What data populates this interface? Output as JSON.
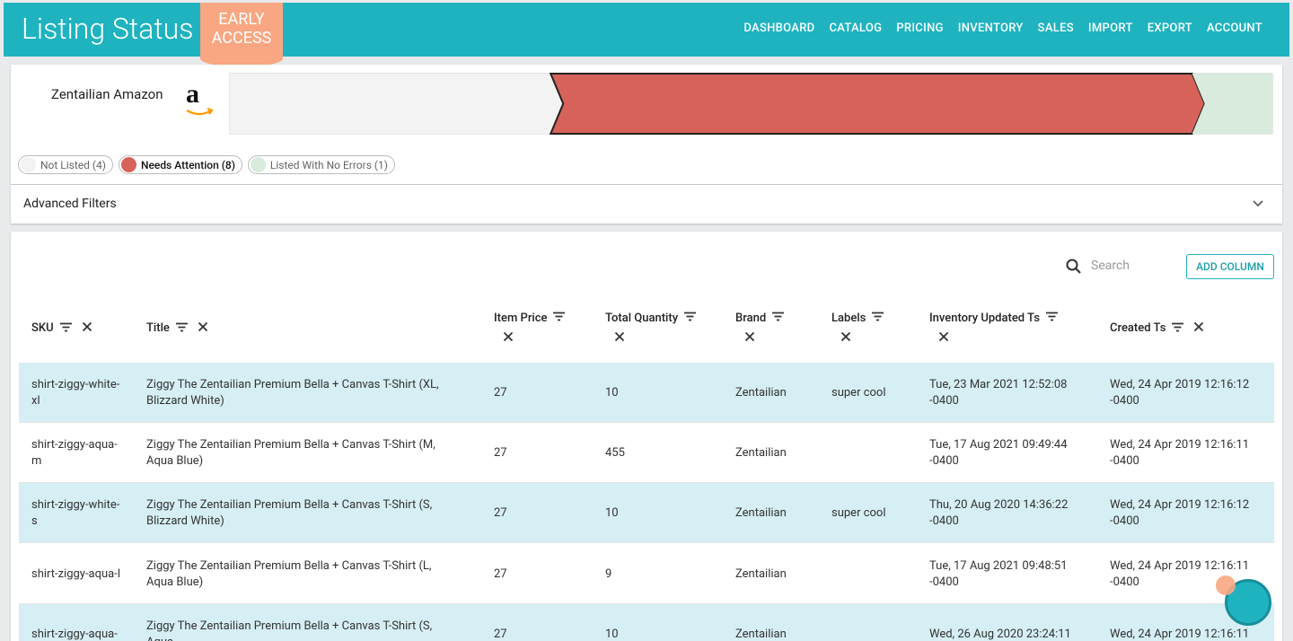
{
  "header": {
    "title": "Listing Status",
    "badge": "EARLY ACCESS",
    "nav": [
      "DASHBOARD",
      "CATALOG",
      "PRICING",
      "INVENTORY",
      "SALES",
      "IMPORT",
      "EXPORT",
      "ACCOUNT"
    ]
  },
  "status": {
    "channel": "Zentailian Amazon",
    "logo": "a",
    "segments": [
      {
        "label": "Not Listed (4)",
        "count": 4,
        "color": "#f3f3f3"
      },
      {
        "label": "Needs Attention (8)",
        "count": 8,
        "color": "#d6625a"
      },
      {
        "label": "Listed With No Errors (1)",
        "count": 1,
        "color": "#d8ebdd"
      }
    ]
  },
  "filters": {
    "title": "Advanced Filters"
  },
  "table": {
    "search": "Search",
    "add_column": "ADD COLUMN",
    "columns": [
      "SKU",
      "Title",
      "Item Price",
      "Total Quantity",
      "Brand",
      "Labels",
      "Inventory Updated Ts",
      "Created Ts"
    ],
    "rows": [
      [
        "shirt-ziggy-white-xl",
        "Ziggy The Zentailian Premium Bella + Canvas T-Shirt (XL, Blizzard White)",
        27,
        10,
        "Zentailian",
        "super cool",
        "Tue, 23 Mar 2021 12:52:08 -0400",
        "Wed, 24 Apr 2019 12:16:12 -0400"
      ],
      [
        "shirt-ziggy-aqua-m",
        "Ziggy The Zentailian Premium Bella + Canvas T-Shirt (M, Aqua Blue)",
        27,
        455,
        "Zentailian",
        null,
        "Tue, 17 Aug 2021 09:49:44 -0400",
        "Wed, 24 Apr 2019 12:16:11 -0400"
      ],
      [
        "shirt-ziggy-white-s",
        "Ziggy The Zentailian Premium Bella + Canvas T-Shirt (S, Blizzard White)",
        27,
        10,
        "Zentailian",
        "super cool",
        "Thu, 20 Aug 2020 14:36:22 -0400",
        "Wed, 24 Apr 2019 12:16:12 -0400"
      ],
      [
        "shirt-ziggy-aqua-l",
        "Ziggy The Zentailian Premium Bella + Canvas T-Shirt (L, Aqua Blue)",
        27,
        9,
        "Zentailian",
        null,
        "Tue, 17 Aug 2021 09:48:51 -0400",
        "Wed, 24 Apr 2019 12:16:11 -0400"
      ],
      [
        "shirt-ziggy-aqua-",
        "Ziggy The Zentailian Premium Bella + Canvas T-Shirt (S, Aqua",
        27,
        10,
        "Zentailian",
        null,
        "Wed, 26 Aug 2020 23:24:11",
        "Wed, 24 Apr 2019 12:16:11"
      ]
    ]
  }
}
